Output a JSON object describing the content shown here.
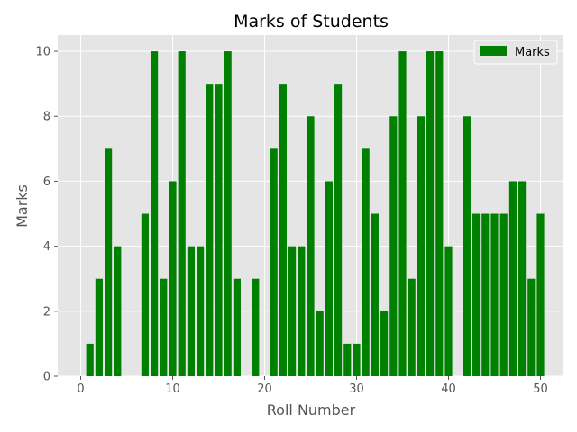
{
  "chart_data": {
    "type": "bar",
    "title": "Marks of Students",
    "xlabel": "Roll Number",
    "ylabel": "Marks",
    "xlim": [
      -2.5,
      52.5
    ],
    "ylim": [
      0,
      10.5
    ],
    "xticks": [
      0,
      10,
      20,
      30,
      40,
      50
    ],
    "yticks": [
      0,
      2,
      4,
      6,
      8,
      10
    ],
    "grid": true,
    "legend_position": "top-right",
    "bar_color": "#008000",
    "background_color": "#e5e5e5",
    "series": [
      {
        "name": "Marks",
        "x": [
          1,
          2,
          3,
          4,
          5,
          6,
          7,
          8,
          9,
          10,
          11,
          12,
          13,
          14,
          15,
          16,
          17,
          18,
          19,
          20,
          21,
          22,
          23,
          24,
          25,
          26,
          27,
          28,
          29,
          30,
          31,
          32,
          33,
          34,
          35,
          36,
          37,
          38,
          39,
          40,
          41,
          42,
          43,
          44,
          45,
          46,
          47,
          48,
          49,
          50
        ],
        "values": [
          1,
          3,
          7,
          4,
          0,
          0,
          5,
          10,
          3,
          6,
          10,
          4,
          4,
          9,
          9,
          10,
          3,
          0,
          3,
          0,
          7,
          9,
          4,
          4,
          8,
          2,
          6,
          9,
          1,
          1,
          7,
          5,
          2,
          8,
          10,
          3,
          8,
          10,
          10,
          4,
          0,
          8,
          5,
          5,
          5,
          5,
          6,
          6,
          3,
          5
        ]
      }
    ]
  }
}
